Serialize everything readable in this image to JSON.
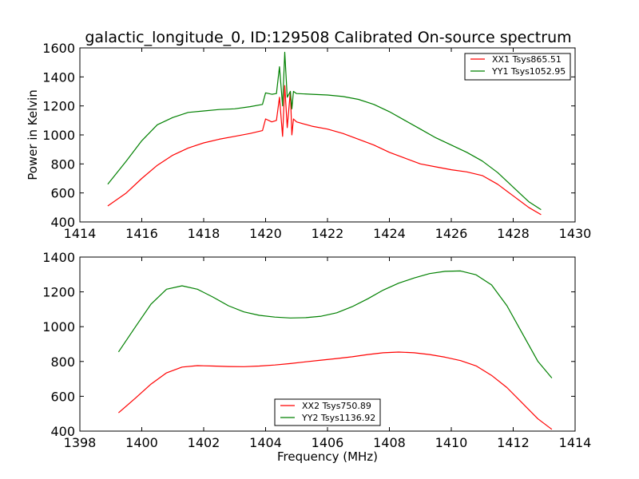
{
  "chart_data": [
    {
      "type": "line",
      "title": "galactic_longitude_0, ID:129508 Calibrated On-source spectrum",
      "xlabel": "",
      "ylabel": "Power in Kelvin",
      "xlim": [
        1414,
        1430
      ],
      "ylim": [
        400,
        1600
      ],
      "xticks": [
        1414,
        1416,
        1418,
        1420,
        1422,
        1424,
        1426,
        1428,
        1430
      ],
      "yticks": [
        400,
        600,
        800,
        1000,
        1200,
        1400,
        1600
      ],
      "grid": false,
      "legend_position": "top-right",
      "series": [
        {
          "name": "XX1 Tsys865.51",
          "color": "#ff0000",
          "points": [
            [
              1414.9,
              510
            ],
            [
              1415.5,
              600
            ],
            [
              1416,
              700
            ],
            [
              1416.5,
              790
            ],
            [
              1417,
              860
            ],
            [
              1417.5,
              910
            ],
            [
              1418,
              945
            ],
            [
              1418.5,
              970
            ],
            [
              1419,
              990
            ],
            [
              1419.5,
              1010
            ],
            [
              1419.9,
              1030
            ],
            [
              1420,
              1110
            ],
            [
              1420.2,
              1090
            ],
            [
              1420.35,
              1100
            ],
            [
              1420.45,
              1260
            ],
            [
              1420.55,
              990
            ],
            [
              1420.62,
              1340
            ],
            [
              1420.7,
              1050
            ],
            [
              1420.8,
              1300
            ],
            [
              1420.85,
              1000
            ],
            [
              1420.9,
              1110
            ],
            [
              1421,
              1090
            ],
            [
              1421.5,
              1060
            ],
            [
              1422,
              1040
            ],
            [
              1422.5,
              1010
            ],
            [
              1423,
              970
            ],
            [
              1423.5,
              930
            ],
            [
              1424,
              880
            ],
            [
              1424.5,
              840
            ],
            [
              1425,
              800
            ],
            [
              1425.5,
              780
            ],
            [
              1426,
              760
            ],
            [
              1426.5,
              745
            ],
            [
              1427,
              720
            ],
            [
              1427.5,
              660
            ],
            [
              1428,
              580
            ],
            [
              1428.5,
              500
            ],
            [
              1428.9,
              450
            ]
          ]
        },
        {
          "name": "YY1 Tsys1052.95",
          "color": "#008000",
          "points": [
            [
              1414.9,
              660
            ],
            [
              1415.5,
              820
            ],
            [
              1416,
              960
            ],
            [
              1416.5,
              1070
            ],
            [
              1417,
              1120
            ],
            [
              1417.5,
              1155
            ],
            [
              1418,
              1165
            ],
            [
              1418.5,
              1175
            ],
            [
              1419,
              1180
            ],
            [
              1419.5,
              1195
            ],
            [
              1419.9,
              1210
            ],
            [
              1420,
              1290
            ],
            [
              1420.2,
              1280
            ],
            [
              1420.35,
              1285
            ],
            [
              1420.45,
              1470
            ],
            [
              1420.55,
              1200
            ],
            [
              1420.62,
              1570
            ],
            [
              1420.7,
              1260
            ],
            [
              1420.8,
              1300
            ],
            [
              1420.85,
              1180
            ],
            [
              1420.9,
              1300
            ],
            [
              1421,
              1285
            ],
            [
              1421.5,
              1280
            ],
            [
              1422,
              1275
            ],
            [
              1422.5,
              1265
            ],
            [
              1423,
              1245
            ],
            [
              1423.5,
              1210
            ],
            [
              1424,
              1160
            ],
            [
              1424.5,
              1100
            ],
            [
              1425,
              1040
            ],
            [
              1425.5,
              980
            ],
            [
              1426,
              930
            ],
            [
              1426.5,
              880
            ],
            [
              1427,
              820
            ],
            [
              1427.5,
              740
            ],
            [
              1428,
              640
            ],
            [
              1428.5,
              540
            ],
            [
              1428.9,
              485
            ]
          ]
        }
      ]
    },
    {
      "type": "line",
      "title": "",
      "xlabel": "Frequency (MHz)",
      "ylabel": "",
      "xlim": [
        1398,
        1414
      ],
      "ylim": [
        400,
        1400
      ],
      "xticks": [
        1398,
        1400,
        1402,
        1404,
        1406,
        1408,
        1410,
        1412,
        1414
      ],
      "yticks": [
        400,
        600,
        800,
        1000,
        1200,
        1400
      ],
      "grid": false,
      "legend_position": "bottom-center",
      "series": [
        {
          "name": "XX2 Tsys750.89",
          "color": "#ff0000",
          "points": [
            [
              1399.25,
              505
            ],
            [
              1399.8,
              590
            ],
            [
              1400.3,
              670
            ],
            [
              1400.8,
              735
            ],
            [
              1401.3,
              768
            ],
            [
              1401.8,
              776
            ],
            [
              1402.3,
              774
            ],
            [
              1402.8,
              771
            ],
            [
              1403.3,
              770
            ],
            [
              1403.8,
              774
            ],
            [
              1404.3,
              780
            ],
            [
              1404.8,
              788
            ],
            [
              1405.3,
              798
            ],
            [
              1405.8,
              808
            ],
            [
              1406.3,
              817
            ],
            [
              1406.8,
              827
            ],
            [
              1407.3,
              840
            ],
            [
              1407.8,
              850
            ],
            [
              1408.3,
              854
            ],
            [
              1408.8,
              850
            ],
            [
              1409.3,
              840
            ],
            [
              1409.8,
              825
            ],
            [
              1410.3,
              805
            ],
            [
              1410.8,
              775
            ],
            [
              1411.3,
              720
            ],
            [
              1411.8,
              650
            ],
            [
              1412.3,
              560
            ],
            [
              1412.8,
              470
            ],
            [
              1413.25,
              410
            ]
          ]
        },
        {
          "name": "YY2 Tsys1136.92",
          "color": "#008000",
          "points": [
            [
              1399.25,
              855
            ],
            [
              1399.8,
              1000
            ],
            [
              1400.3,
              1130
            ],
            [
              1400.8,
              1215
            ],
            [
              1401.3,
              1235
            ],
            [
              1401.8,
              1215
            ],
            [
              1402.3,
              1170
            ],
            [
              1402.8,
              1120
            ],
            [
              1403.3,
              1085
            ],
            [
              1403.8,
              1065
            ],
            [
              1404.3,
              1055
            ],
            [
              1404.8,
              1050
            ],
            [
              1405.3,
              1052
            ],
            [
              1405.8,
              1060
            ],
            [
              1406.3,
              1080
            ],
            [
              1406.8,
              1115
            ],
            [
              1407.3,
              1160
            ],
            [
              1407.8,
              1210
            ],
            [
              1408.3,
              1250
            ],
            [
              1408.8,
              1280
            ],
            [
              1409.3,
              1305
            ],
            [
              1409.8,
              1318
            ],
            [
              1410.3,
              1320
            ],
            [
              1410.8,
              1298
            ],
            [
              1411.3,
              1240
            ],
            [
              1411.8,
              1120
            ],
            [
              1412.3,
              960
            ],
            [
              1412.8,
              800
            ],
            [
              1413.25,
              705
            ]
          ]
        }
      ]
    }
  ]
}
